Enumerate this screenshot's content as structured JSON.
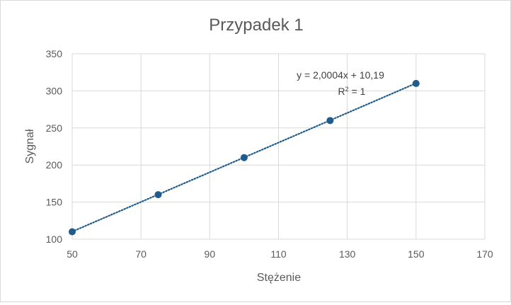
{
  "chart_data": {
    "type": "scatter",
    "title": "Przypadek 1",
    "xlabel": "Stężenie",
    "ylabel": "Sygnał",
    "xlim": [
      50,
      170
    ],
    "ylim": [
      100,
      350
    ],
    "xticks": [
      50,
      70,
      90,
      110,
      130,
      150,
      170
    ],
    "yticks": [
      100,
      150,
      200,
      250,
      300,
      350
    ],
    "grid": true,
    "series": [
      {
        "x": [
          50,
          75,
          100,
          125,
          150
        ],
        "y": [
          110,
          160,
          210,
          260,
          310
        ],
        "color": "#1f5c8b"
      }
    ],
    "trendline": {
      "type": "linear",
      "slope": 2.0004,
      "intercept": 10.19,
      "x_range": [
        50,
        150
      ],
      "style": "dotted",
      "color": "#1f5c8b",
      "equation_label": "y = 2,0004x + 10,19",
      "r2_prefix": "R",
      "r2_exp": "2",
      "r2_suffix": " = 1"
    }
  }
}
